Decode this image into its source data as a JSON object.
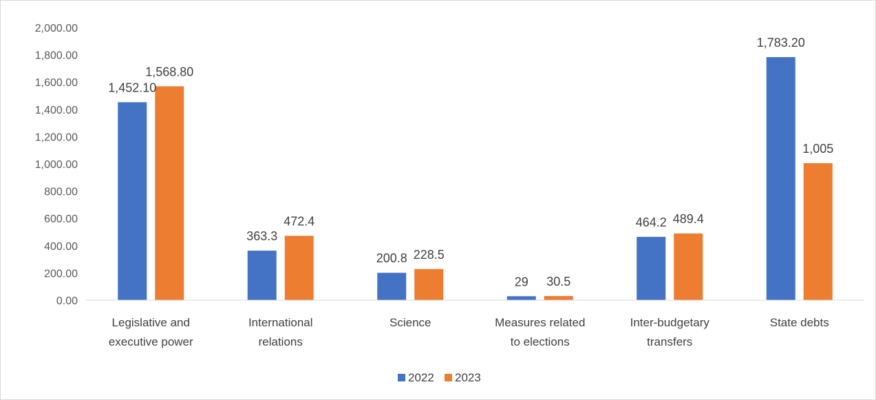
{
  "chart_data": {
    "type": "bar",
    "categories": [
      [
        "Legislative and",
        "executive power"
      ],
      [
        "International",
        "relations"
      ],
      [
        "Science"
      ],
      [
        "Measures related",
        "to elections"
      ],
      [
        "Inter-budgetary",
        "transfers"
      ],
      [
        "State debts"
      ]
    ],
    "series": [
      {
        "name": "2022",
        "color": "#4472c4",
        "values": [
          1452.1,
          363.3,
          200.8,
          29,
          464.2,
          1783.2
        ],
        "labels": [
          "1,452.10",
          "363.3",
          "200.8",
          "29",
          "464.2",
          "1,783.20"
        ]
      },
      {
        "name": "2023",
        "color": "#ed7d31",
        "values": [
          1568.8,
          472.4,
          228.5,
          30.5,
          489.4,
          1005
        ],
        "labels": [
          "1,568.80",
          "472.4",
          "228.5",
          "30.5",
          "489.4",
          "1,005"
        ]
      }
    ],
    "y_ticks": [
      "0.00",
      "200.00",
      "400.00",
      "600.00",
      "800.00",
      "1,000.00",
      "1,200.00",
      "1,400.00",
      "1,600.00",
      "1,800.00",
      "2,000.00"
    ],
    "ylim": [
      0,
      2000
    ],
    "grid": false,
    "legend_position": "bottom",
    "title": "",
    "xlabel": "",
    "ylabel": ""
  }
}
